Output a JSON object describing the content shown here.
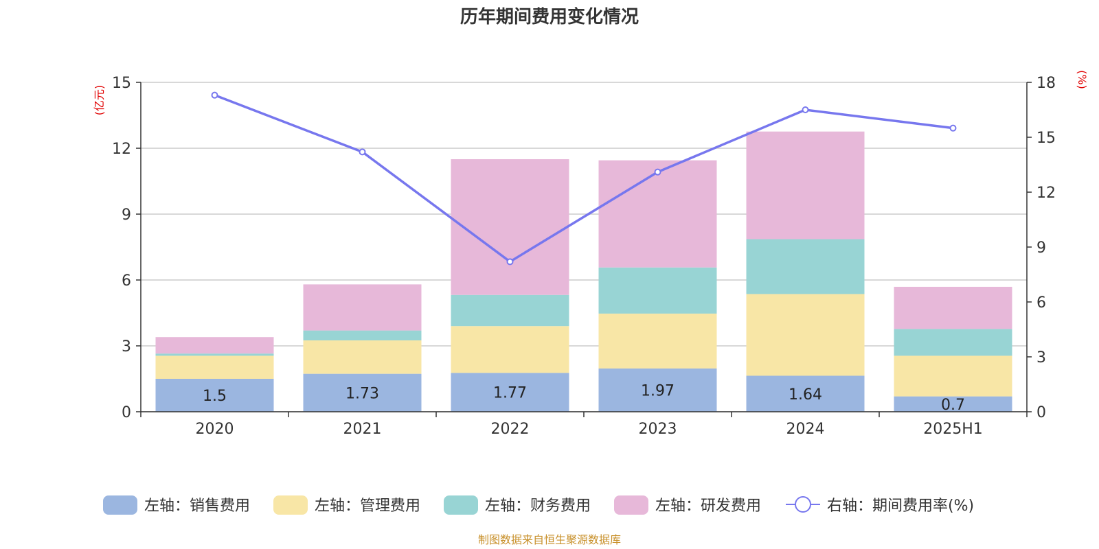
{
  "chart_data": {
    "type": "bar",
    "stacked": true,
    "title": "历年期间费用变化情况",
    "source": "制图数据来自恒生聚源数据库",
    "categories": [
      "2020",
      "2021",
      "2022",
      "2023",
      "2024",
      "2025H1"
    ],
    "left_axis": {
      "unit": "(亿元)",
      "ylim": [
        0,
        15
      ],
      "ticks": [
        "0",
        "3",
        "6",
        "9",
        "12",
        "15"
      ]
    },
    "right_axis": {
      "unit": "(%)",
      "ylim": [
        0,
        18
      ],
      "ticks": [
        "0",
        "3",
        "6",
        "9",
        "12",
        "15",
        "18"
      ]
    },
    "grid": true,
    "legend_position": "bottom",
    "series": [
      {
        "name": "左轴：销售费用",
        "axis": "left",
        "type": "bar",
        "color": "#9bb6e0",
        "values": [
          1.5,
          1.73,
          1.77,
          1.97,
          1.64,
          0.7
        ],
        "labels": [
          "1.5",
          "1.73",
          "1.77",
          "1.97",
          "1.64",
          "0.7"
        ]
      },
      {
        "name": "左轴：管理费用",
        "axis": "left",
        "type": "bar",
        "color": "#f8e6a6",
        "values": [
          1.05,
          1.52,
          2.13,
          2.5,
          3.72,
          1.85
        ]
      },
      {
        "name": "左轴：财务费用",
        "axis": "left",
        "type": "bar",
        "color": "#98d4d4",
        "values": [
          0.1,
          0.45,
          1.42,
          2.1,
          2.5,
          1.22
        ]
      },
      {
        "name": "左轴：研发费用",
        "axis": "left",
        "type": "bar",
        "color": "#e7b8d9",
        "values": [
          0.75,
          2.1,
          6.18,
          4.88,
          4.9,
          1.92
        ]
      },
      {
        "name": "右轴：期间费用率(%)",
        "axis": "right",
        "type": "line",
        "color": "#7777ee",
        "values": [
          17.3,
          14.2,
          8.2,
          13.1,
          16.5,
          15.5
        ]
      }
    ]
  }
}
